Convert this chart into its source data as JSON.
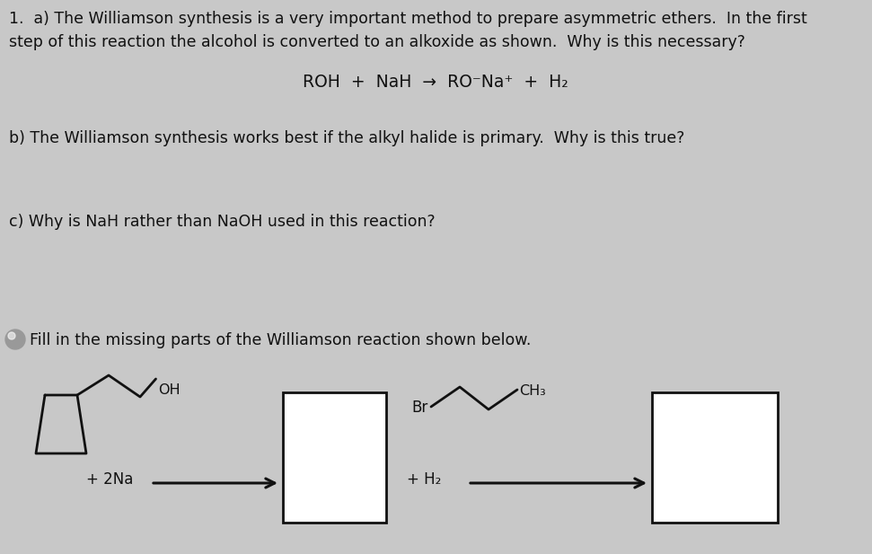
{
  "background_color": "#c8c8c8",
  "text_color": "#111111",
  "title_q1a": "1.  a) The Williamson synthesis is a very important method to prepare asymmetric ethers.  In the first",
  "title_q1b": "step of this reaction the alcohol is converted to an alkoxide as shown.  Why is this necessary?",
  "equation_line": "ROH  +  NaH  →  RO⁻Na⁺  +  H₂",
  "question_b": "b) The Williamson synthesis works best if the alkyl halide is primary.  Why is this true?",
  "question_c": "c) Why is NaH rather than NaOH used in this reaction?",
  "fill_in": "Fill in the missing parts of the Williamson reaction shown below.",
  "plus_2na": "+ 2Na",
  "plus_h2": "+ H₂",
  "br_label": "Br",
  "ch3_label": "CH₃",
  "oh_label": "OH",
  "figsize": [
    9.71,
    6.17
  ],
  "dpi": 100
}
